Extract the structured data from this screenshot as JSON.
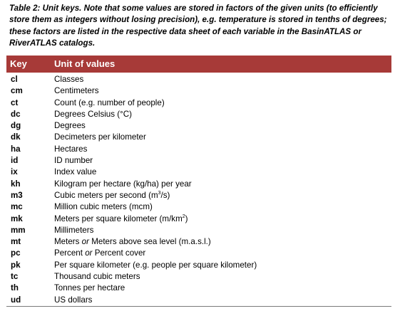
{
  "caption": "Table 2: Unit keys. Note that some values are stored in factors of the given units (to efficiently store them as integers without losing precision), e.g. temperature is stored in tenths of degrees; these factors are listed in the respective data sheet of each variable in the BasinATLAS or RiverATLAS catalogs.",
  "table": {
    "header_color": "#a73a38",
    "col_key": "Key",
    "col_unit": "Unit of values",
    "rows": [
      {
        "key": "cl",
        "unit": "Classes"
      },
      {
        "key": "cm",
        "unit": "Centimeters"
      },
      {
        "key": "ct",
        "unit": "Count (e.g. number of people)"
      },
      {
        "key": "dc",
        "unit": "Degrees Celsius (°C)"
      },
      {
        "key": "dg",
        "unit": "Degrees"
      },
      {
        "key": "dk",
        "unit": "Decimeters per kilometer"
      },
      {
        "key": "ha",
        "unit": "Hectares"
      },
      {
        "key": "id",
        "unit": "ID number"
      },
      {
        "key": "ix",
        "unit": "Index value"
      },
      {
        "key": "kh",
        "unit": "Kilogram per hectare (kg/ha) per year"
      },
      {
        "key": "m3",
        "unit": "Cubic meters per second (m",
        "unit_sup": "3",
        "unit_tail": "/s)"
      },
      {
        "key": "mc",
        "unit": "Million cubic meters (mcm)"
      },
      {
        "key": "mk",
        "unit": "Meters per square kilometer (m/km",
        "unit_sup": "2",
        "unit_tail": ")"
      },
      {
        "key": "mm",
        "unit": "Millimeters"
      },
      {
        "key": "mt",
        "unit": "Meters",
        "unit_em": "or",
        "unit_tail": "Meters above sea level (m.a.s.l.)"
      },
      {
        "key": "pc",
        "unit": "Percent",
        "unit_em": "or",
        "unit_tail": "Percent cover"
      },
      {
        "key": "pk",
        "unit": "Per square kilometer (e.g. people per square kilometer)"
      },
      {
        "key": "tc",
        "unit": "Thousand cubic meters"
      },
      {
        "key": "th",
        "unit": "Tonnes per hectare"
      },
      {
        "key": "ud",
        "unit": "US dollars"
      }
    ]
  }
}
